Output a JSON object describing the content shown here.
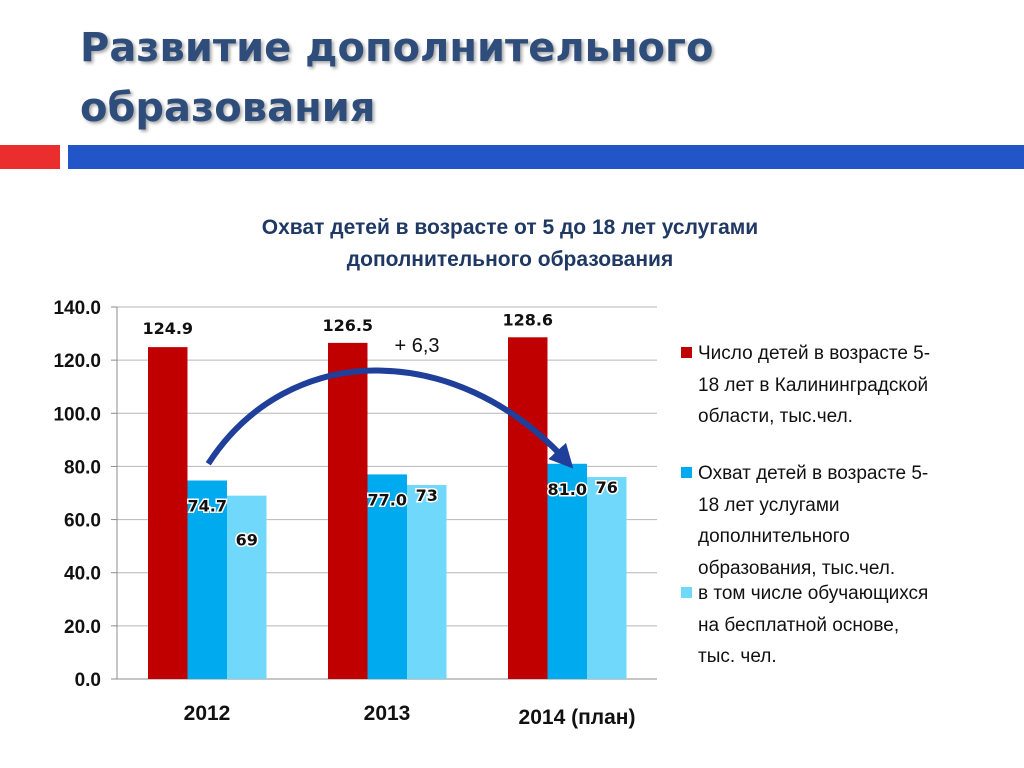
{
  "slide": {
    "title_line1": "Развитие дополнительного",
    "title_line2": "образования"
  },
  "colors": {
    "title": "#2e4d7b",
    "accent_red": "#ea2e2e",
    "accent_blue": "#2255c8",
    "arrow": "#1f3f9a"
  },
  "chart_data": {
    "type": "bar",
    "title_line1": "Охват детей в возрасте от 5 до 18 лет услугами",
    "title_line2": "дополнительного образования",
    "categories": [
      "2012",
      "2013",
      "2014 (план)"
    ],
    "series": [
      {
        "name": "Число детей в возрасте 5-18 лет в Калининградской области, тыс.чел.",
        "values": [
          124.9,
          126.5,
          128.6
        ],
        "labels": [
          "124.9",
          "126.5",
          "128.6"
        ],
        "color": "#c00000"
      },
      {
        "name": "Охват детей в возрасте 5-18 лет услугами дополнительного образования, тыс.чел.",
        "values": [
          74.7,
          77.0,
          81.0
        ],
        "labels": [
          "74.7",
          "77.0",
          "81.0"
        ],
        "color": "#00aaee"
      },
      {
        "name": "в том числе обучающихся на бесплатной основе, тыс. чел.",
        "values": [
          69,
          73,
          76
        ],
        "labels": [
          "69",
          "73",
          "76"
        ],
        "color": "#6fd8fb"
      }
    ],
    "ylim": [
      0,
      140
    ],
    "yticks": [
      0,
      20,
      40,
      60,
      80,
      100,
      120,
      140
    ],
    "ytick_labels": [
      "0.0",
      "20.0",
      "40.0",
      "60.0",
      "80.0",
      "100.0",
      "120.0",
      "140.0"
    ],
    "grid": true,
    "legend_position": "right",
    "annotation": "+ 6,3"
  },
  "legend_lines": [
    [
      "Число детей в возрасте 5-",
      "18 лет в Калининградской",
      "области, тыс.чел."
    ],
    [
      "Охват детей в возрасте 5-",
      "18 лет услугами",
      "дополнительного",
      "образования, тыс.чел."
    ],
    [
      "в том числе обучающихся",
      "на бесплатной основе,",
      "тыс. чел."
    ]
  ]
}
